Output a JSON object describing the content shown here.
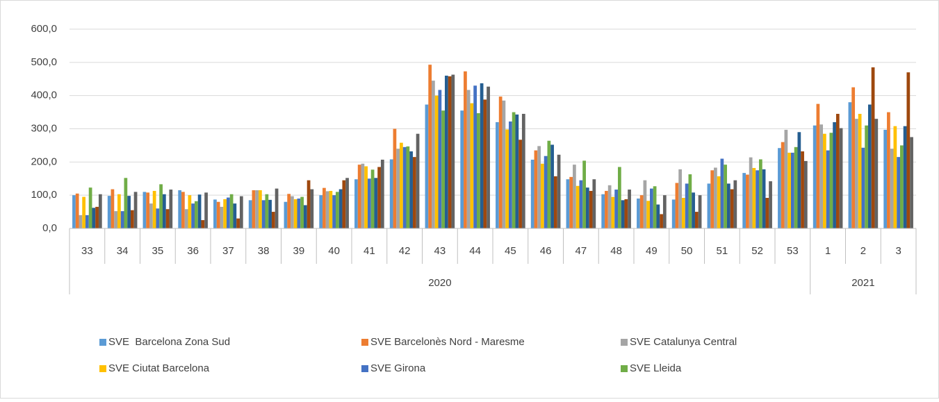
{
  "chart_data": {
    "type": "bar",
    "groups": [
      {
        "label": "2020",
        "categories": [
          "33",
          "34",
          "35",
          "36",
          "37",
          "38",
          "39",
          "40",
          "41",
          "42",
          "43",
          "44",
          "45",
          "46",
          "47",
          "48",
          "49",
          "50",
          "51",
          "52",
          "53"
        ]
      },
      {
        "label": "2021",
        "categories": [
          "1",
          "2",
          "3"
        ]
      }
    ],
    "ylim": [
      0,
      600
    ],
    "yticks": [
      {
        "value": 0,
        "label": "0,0"
      },
      {
        "value": 100,
        "label": "100,0"
      },
      {
        "value": 200,
        "label": "200,0"
      },
      {
        "value": 300,
        "label": "300,0"
      },
      {
        "value": 400,
        "label": "400,0"
      },
      {
        "value": 500,
        "label": "500,0"
      },
      {
        "value": 600,
        "label": "600,0"
      }
    ],
    "grid": true,
    "series": [
      {
        "name": "SVE  Barcelona Zona Sud",
        "color": "#5b9bd5",
        "values": [
          100,
          98,
          110,
          115,
          87,
          85,
          80,
          100,
          148,
          208,
          373,
          355,
          320,
          207,
          148,
          103,
          90,
          87,
          135,
          167,
          242,
          310,
          380,
          297
        ]
      },
      {
        "name": "SVE Barcelonès Nord - Maresme",
        "color": "#ed7d31",
        "values": [
          105,
          118,
          108,
          110,
          80,
          115,
          104,
          122,
          192,
          300,
          493,
          473,
          397,
          235,
          155,
          113,
          100,
          137,
          175,
          162,
          260,
          375,
          425,
          350
        ]
      },
      {
        "name": "SVE Catalunya Central",
        "color": "#a5a5a5",
        "values": [
          40,
          52,
          75,
          58,
          65,
          115,
          97,
          112,
          195,
          240,
          445,
          417,
          385,
          248,
          192,
          130,
          145,
          178,
          183,
          214,
          297,
          313,
          330,
          240
        ]
      },
      {
        "name": "SVE Ciutat Barcelona",
        "color": "#ffc000",
        "values": [
          95,
          103,
          113,
          100,
          88,
          115,
          88,
          113,
          187,
          258,
          400,
          377,
          298,
          195,
          128,
          95,
          83,
          92,
          157,
          182,
          228,
          285,
          345,
          308
        ]
      },
      {
        "name": "SVE Girona",
        "color": "#4472c4",
        "values": [
          40,
          52,
          60,
          75,
          93,
          85,
          90,
          100,
          150,
          245,
          417,
          430,
          322,
          218,
          145,
          117,
          120,
          135,
          210,
          175,
          228,
          235,
          243,
          215
        ]
      },
      {
        "name": "SVE Lleida",
        "color": "#70ad47",
        "values": [
          123,
          152,
          133,
          82,
          103,
          103,
          95,
          110,
          177,
          247,
          355,
          347,
          350,
          264,
          204,
          185,
          127,
          163,
          192,
          208,
          245,
          288,
          310,
          250
        ]
      },
      {
        "color": "#255e91",
        "values": [
          62,
          98,
          103,
          102,
          75,
          86,
          70,
          118,
          152,
          232,
          460,
          437,
          343,
          252,
          123,
          85,
          72,
          108,
          135,
          178,
          290,
          320,
          373,
          308
        ]
      },
      {
        "color": "#9e480e",
        "values": [
          65,
          55,
          58,
          25,
          30,
          50,
          145,
          145,
          185,
          215,
          458,
          388,
          267,
          157,
          113,
          88,
          43,
          50,
          118,
          92,
          232,
          345,
          485,
          470
        ]
      },
      {
        "color": "#636363",
        "values": [
          103,
          110,
          117,
          108,
          97,
          120,
          118,
          152,
          207,
          285,
          463,
          427,
          345,
          222,
          148,
          117,
          100,
          100,
          145,
          142,
          203,
          302,
          330,
          275
        ]
      }
    ]
  }
}
